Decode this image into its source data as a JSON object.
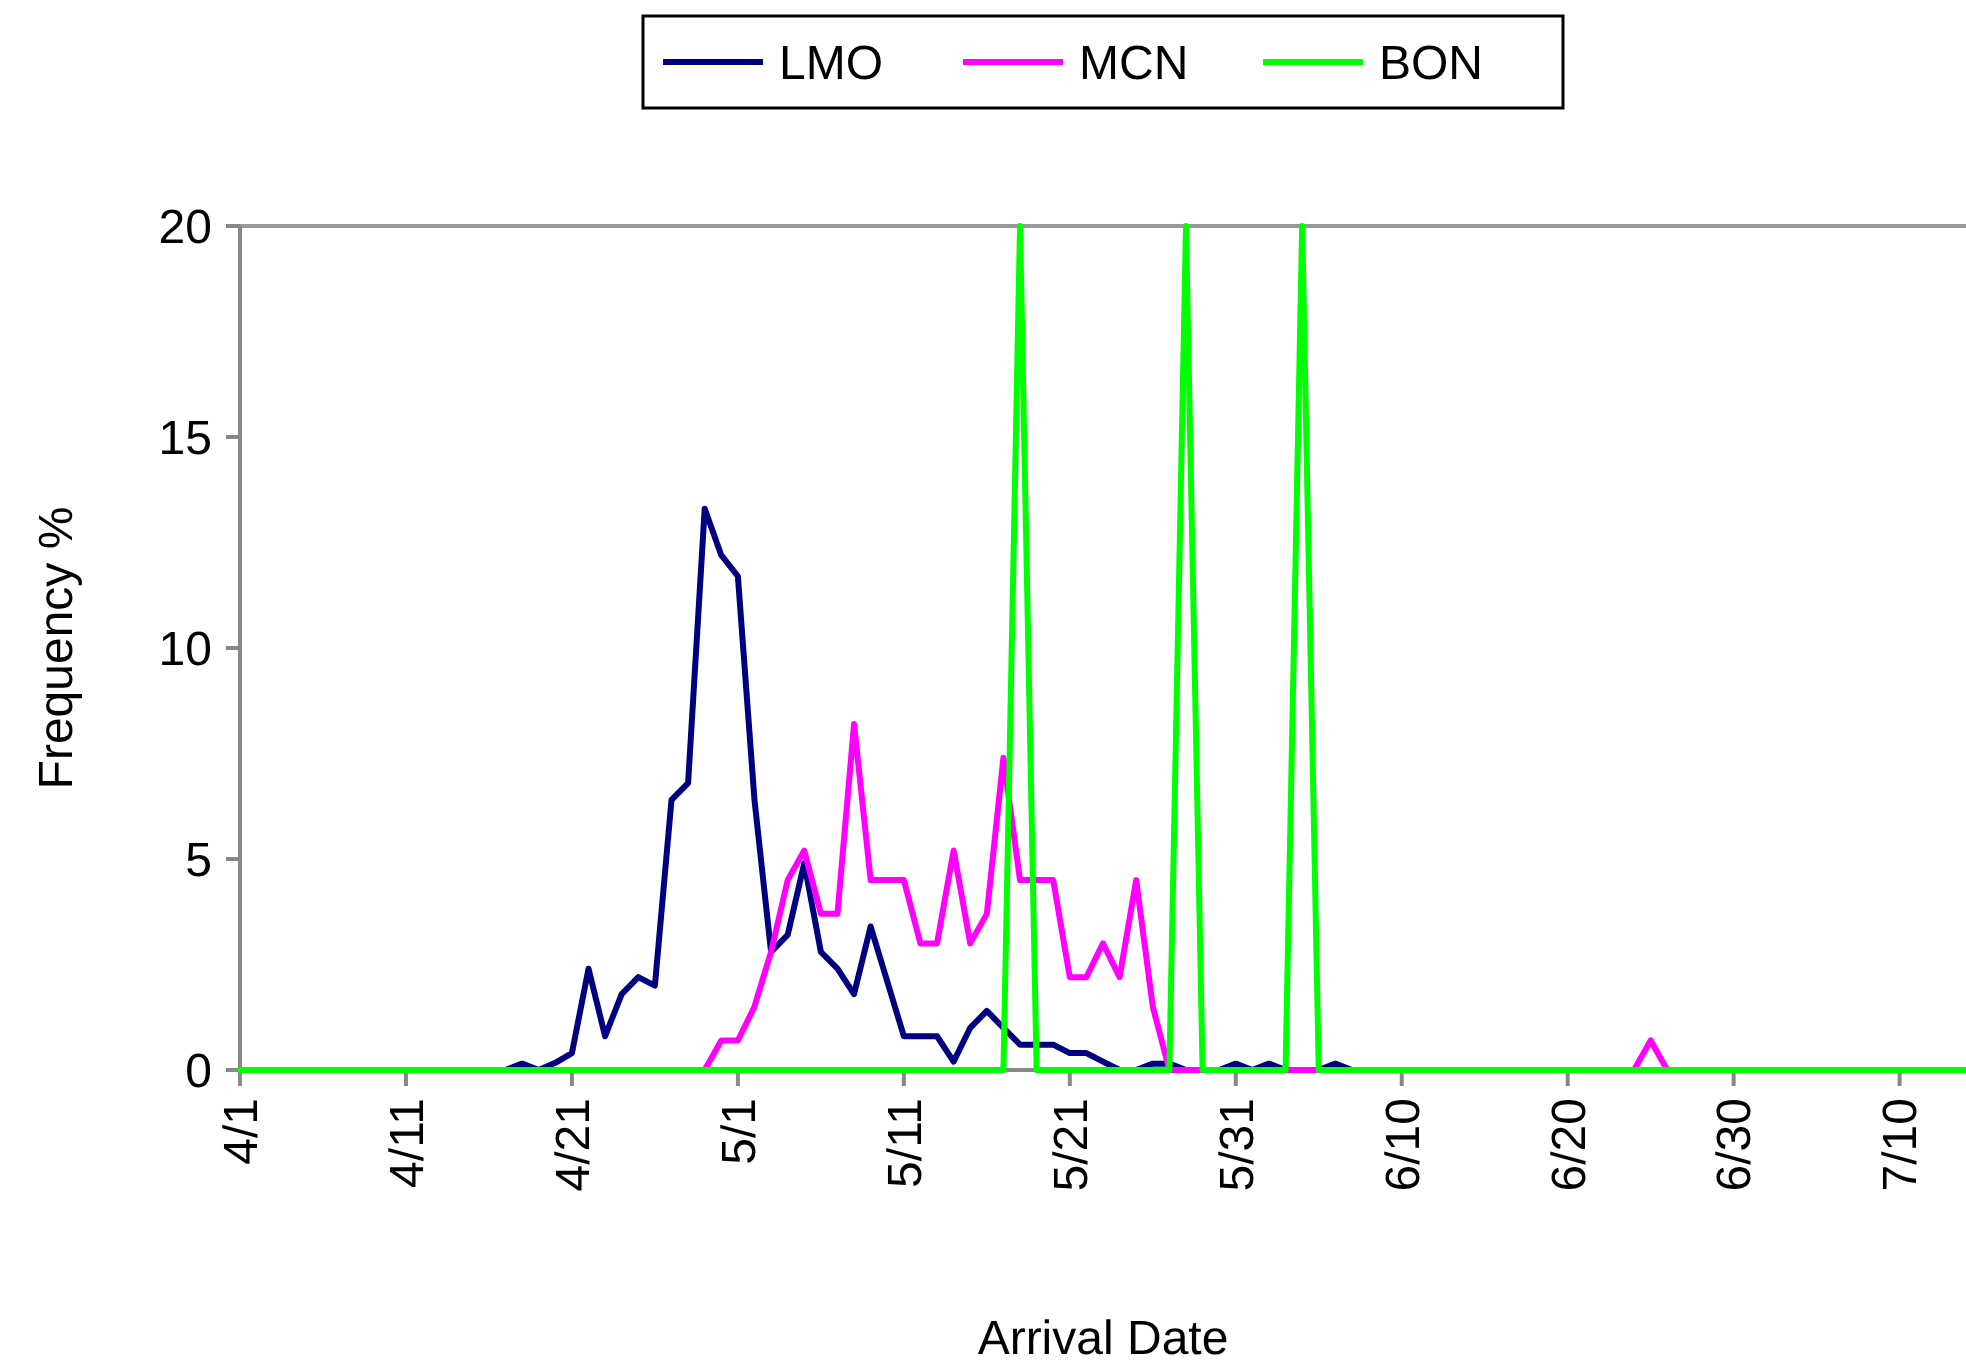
{
  "chart_data": {
    "type": "line",
    "xlabel": "Arrival Date",
    "ylabel": "Frequency %",
    "xlim": [
      "--04-01",
      "--07-14"
    ],
    "xticks": [
      {
        "value": "--04-01",
        "label": "4/1"
      },
      {
        "value": "--04-11",
        "label": "4/11"
      },
      {
        "value": "--04-21",
        "label": "4/21"
      },
      {
        "value": "--05-01",
        "label": "5/1"
      },
      {
        "value": "--05-11",
        "label": "5/11"
      },
      {
        "value": "--05-21",
        "label": "5/21"
      },
      {
        "value": "--05-31",
        "label": "5/31"
      },
      {
        "value": "--06-10",
        "label": "6/10"
      },
      {
        "value": "--06-20",
        "label": "6/20"
      },
      {
        "value": "--06-30",
        "label": "6/30"
      },
      {
        "value": "--07-10",
        "label": "7/10"
      }
    ],
    "ylim": [
      0,
      20
    ],
    "yticks": [
      0,
      5,
      10,
      15,
      20
    ],
    "grid": false,
    "legend": "top",
    "marker": "none",
    "line_style": "solid",
    "series": [
      {
        "name": "LMO",
        "color": "#000080",
        "x": [
          "--04-01",
          "--04-17",
          "--04-18",
          "--04-19",
          "--04-20",
          "--04-21",
          "--04-22",
          "--04-23",
          "--04-24",
          "--04-25",
          "--04-26",
          "--04-27",
          "--04-28",
          "--04-29",
          "--04-30",
          "--05-01",
          "--05-02",
          "--05-03",
          "--05-04",
          "--05-05",
          "--05-06",
          "--05-07",
          "--05-08",
          "--05-09",
          "--05-10",
          "--05-11",
          "--05-12",
          "--05-13",
          "--05-14",
          "--05-15",
          "--05-16",
          "--05-17",
          "--05-18",
          "--05-19",
          "--05-20",
          "--05-21",
          "--05-22",
          "--05-23",
          "--05-24",
          "--05-25",
          "--05-26",
          "--05-27",
          "--05-28",
          "--05-30",
          "--05-31",
          "--06-01",
          "--06-02",
          "--06-03",
          "--06-05",
          "--06-06",
          "--06-07",
          "--07-14"
        ],
        "values": [
          0,
          0,
          0.15,
          0,
          0.17,
          0.4,
          2.4,
          0.8,
          1.8,
          2.2,
          2.0,
          6.4,
          6.8,
          13.3,
          12.2,
          11.7,
          6.4,
          2.8,
          3.2,
          4.9,
          2.8,
          2.4,
          1.8,
          3.4,
          2.1,
          0.8,
          0.8,
          0.8,
          0.2,
          1.0,
          1.4,
          1.0,
          0.6,
          0.6,
          0.6,
          0.4,
          0.4,
          0.2,
          0,
          0,
          0.15,
          0.15,
          0,
          0,
          0.15,
          0,
          0.15,
          0,
          0,
          0.15,
          0,
          0
        ]
      },
      {
        "name": "MCN",
        "color": "#ff00ff",
        "x": [
          "--04-01",
          "--04-29",
          "--04-30",
          "--05-01",
          "--05-02",
          "--05-03",
          "--05-04",
          "--05-05",
          "--05-06",
          "--05-07",
          "--05-08",
          "--05-09",
          "--05-10",
          "--05-11",
          "--05-12",
          "--05-13",
          "--05-14",
          "--05-15",
          "--05-16",
          "--05-17",
          "--05-18",
          "--05-19",
          "--05-20",
          "--05-21",
          "--05-22",
          "--05-23",
          "--05-24",
          "--05-25",
          "--05-26",
          "--05-27",
          "--06-24",
          "--06-25",
          "--06-26",
          "--07-14"
        ],
        "values": [
          0,
          0,
          0.7,
          0.7,
          1.5,
          2.8,
          4.5,
          5.2,
          3.7,
          3.7,
          8.2,
          4.5,
          4.5,
          4.5,
          3.0,
          3.0,
          5.2,
          3.0,
          3.7,
          7.4,
          4.5,
          4.5,
          4.5,
          2.2,
          2.2,
          3.0,
          2.2,
          4.5,
          1.5,
          0,
          0,
          0.7,
          0,
          0
        ]
      },
      {
        "name": "BON",
        "color": "#00ff00",
        "x": [
          "--04-01",
          "--05-17",
          "--05-18",
          "--05-19",
          "--05-27",
          "--05-28",
          "--05-29",
          "--06-03",
          "--06-04",
          "--06-05",
          "--07-14"
        ],
        "values": [
          0,
          0,
          20,
          0,
          0,
          20,
          0,
          0,
          20,
          0,
          0
        ]
      }
    ]
  }
}
